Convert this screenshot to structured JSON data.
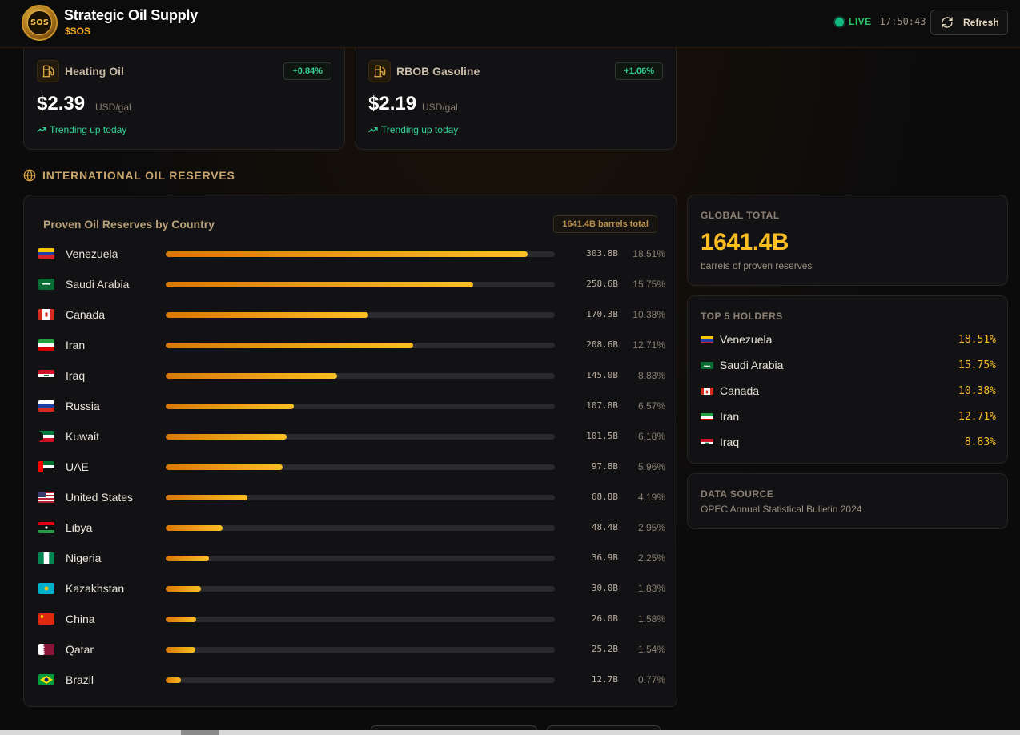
{
  "header": {
    "title": "Strategic Oil Supply",
    "ticker": "$SOS",
    "logo_text": "SOS",
    "live_label": "LIVE",
    "time": "17:50:43",
    "refresh_label": "Refresh"
  },
  "price_cards": [
    {
      "name": "Heating Oil",
      "change": "+0.84%",
      "price": "$2.39",
      "unit": "USD/gal",
      "trend": "Trending up today",
      "icon": "fuel-pump-icon"
    },
    {
      "name": "RBOB Gasoline",
      "change": "+1.06%",
      "price": "$2.19",
      "unit": "USD/gal",
      "trend": "Trending up today",
      "icon": "fuel-pump-icon"
    }
  ],
  "reserves": {
    "section_title": "INTERNATIONAL OIL RESERVES",
    "card_title": "Proven Oil Reserves by Country",
    "total_badge": "1641.4B barrels total",
    "countries": [
      {
        "name": "Venezuela",
        "value": "303.8B",
        "pct": "18.51%",
        "share": 0.93
      },
      {
        "name": "Saudi Arabia",
        "value": "258.6B",
        "pct": "15.75%",
        "share": 0.79
      },
      {
        "name": "Canada",
        "value": "170.3B",
        "pct": "10.38%",
        "share": 0.52
      },
      {
        "name": "Iran",
        "value": "208.6B",
        "pct": "12.71%",
        "share": 0.635
      },
      {
        "name": "Iraq",
        "value": "145.0B",
        "pct": "8.83%",
        "share": 0.44
      },
      {
        "name": "Russia",
        "value": "107.8B",
        "pct": "6.57%",
        "share": 0.33
      },
      {
        "name": "Kuwait",
        "value": "101.5B",
        "pct": "6.18%",
        "share": 0.31
      },
      {
        "name": "UAE",
        "value": "97.8B",
        "pct": "5.96%",
        "share": 0.3
      },
      {
        "name": "United States",
        "value": "68.8B",
        "pct": "4.19%",
        "share": 0.21
      },
      {
        "name": "Libya",
        "value": "48.4B",
        "pct": "2.95%",
        "share": 0.147
      },
      {
        "name": "Nigeria",
        "value": "36.9B",
        "pct": "2.25%",
        "share": 0.112
      },
      {
        "name": "Kazakhstan",
        "value": "30.0B",
        "pct": "1.83%",
        "share": 0.091
      },
      {
        "name": "China",
        "value": "26.0B",
        "pct": "1.58%",
        "share": 0.079
      },
      {
        "name": "Qatar",
        "value": "25.2B",
        "pct": "1.54%",
        "share": 0.076
      },
      {
        "name": "Brazil",
        "value": "12.7B",
        "pct": "0.77%",
        "share": 0.039
      }
    ]
  },
  "global_total": {
    "label": "GLOBAL TOTAL",
    "value": "1641.4B",
    "sub": "barrels of proven reserves"
  },
  "top_holders": {
    "label": "TOP 5 HOLDERS",
    "items": [
      {
        "name": "Venezuela",
        "pct": "18.51%"
      },
      {
        "name": "Saudi Arabia",
        "pct": "15.75%"
      },
      {
        "name": "Canada",
        "pct": "10.38%"
      },
      {
        "name": "Iran",
        "pct": "12.71%"
      },
      {
        "name": "Iraq",
        "pct": "8.83%"
      }
    ]
  },
  "data_source": {
    "label": "DATA SOURCE",
    "value": "OPEC Annual Statistical Bulletin 2024"
  },
  "colors": {
    "accent": "#fbbf24",
    "accent_dark": "#d97706",
    "positive": "#34d399",
    "live": "#22c55e"
  }
}
